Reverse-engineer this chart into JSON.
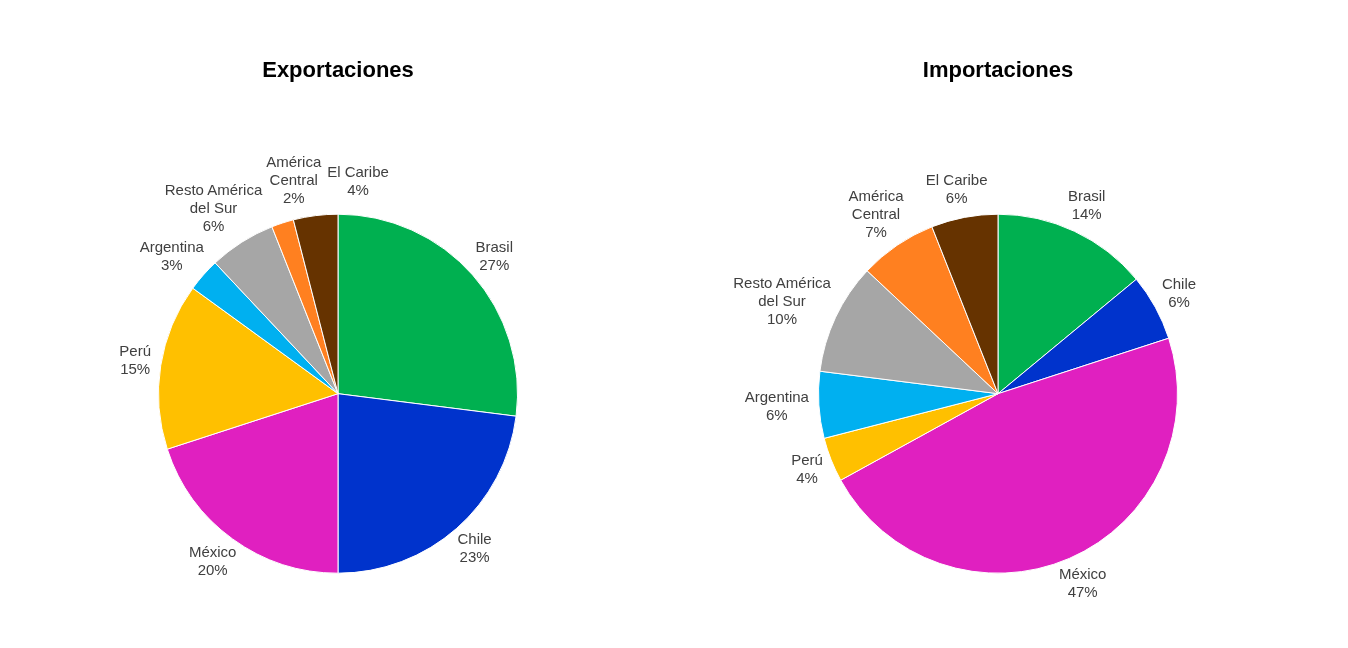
{
  "chart_data": [
    {
      "type": "pie",
      "title": "Exportaciones",
      "categories": [
        "Brasil",
        "Chile",
        "México",
        "Perú",
        "Argentina",
        "Resto América del Sur",
        "América Central",
        "El Caribe"
      ],
      "values": [
        27,
        23,
        20,
        15,
        3,
        6,
        2,
        4
      ],
      "value_labels": [
        "27%",
        "23%",
        "20%",
        "15%",
        "3%",
        "6%",
        "2%",
        "4%"
      ],
      "colors": [
        "#00b050",
        "#0033cc",
        "#e020c0",
        "#ffc000",
        "#00b0f0",
        "#a6a6a6",
        "#ff8020",
        "#663300"
      ],
      "legend": false
    },
    {
      "type": "pie",
      "title": "Importaciones",
      "categories": [
        "Brasil",
        "Chile",
        "México",
        "Perú",
        "Argentina",
        "Resto América del Sur",
        "América Central",
        "El Caribe"
      ],
      "values": [
        14,
        6,
        47,
        4,
        6,
        10,
        7,
        6
      ],
      "value_labels": [
        "14%",
        "6%",
        "47%",
        "4%",
        "6%",
        "10%",
        "7%",
        "6%"
      ],
      "colors": [
        "#00b050",
        "#0033cc",
        "#e020c0",
        "#ffc000",
        "#00b0f0",
        "#a6a6a6",
        "#ff8020",
        "#663300"
      ],
      "legend": false
    }
  ]
}
